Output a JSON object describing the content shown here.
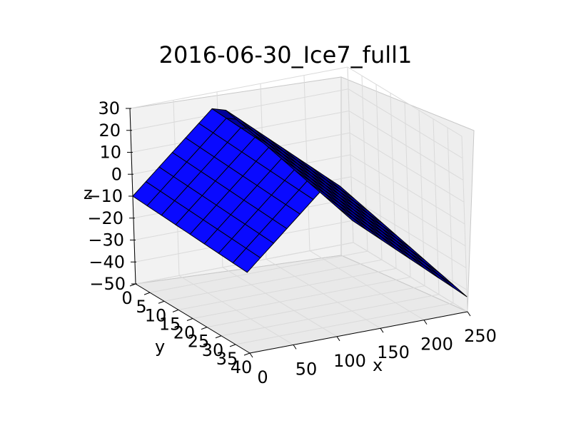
{
  "chart_data": {
    "type": "surface3d",
    "title": "2016-06-30_Ice7_full1",
    "xlabel": "x",
    "ylabel": "y",
    "zlabel": "z",
    "xlim": [
      0,
      250
    ],
    "ylim": [
      0,
      40
    ],
    "zlim": [
      -50,
      30
    ],
    "x_ticks": [
      "0",
      "50",
      "100",
      "150",
      "200",
      "250"
    ],
    "y_ticks": [
      "0",
      "5",
      "10",
      "15",
      "20",
      "25",
      "30",
      "35",
      "40"
    ],
    "z_ticks": [
      "30",
      "20",
      "10",
      "0",
      "−10",
      "−20",
      "−30",
      "−40",
      "−50"
    ],
    "grid": true,
    "surface_description_units": "ridge along y axis peaking near x≈100",
    "surface": {
      "x_peak": 100,
      "z_peak": 25,
      "z_edge_min_x": -10,
      "z_edge_max_x": -40
    },
    "colors": {
      "face_light": "#0a0aff",
      "face_dark": "#00009a",
      "edge": "#000000",
      "pane": "#f1f1f1",
      "grid": "#dcdcdc"
    }
  }
}
